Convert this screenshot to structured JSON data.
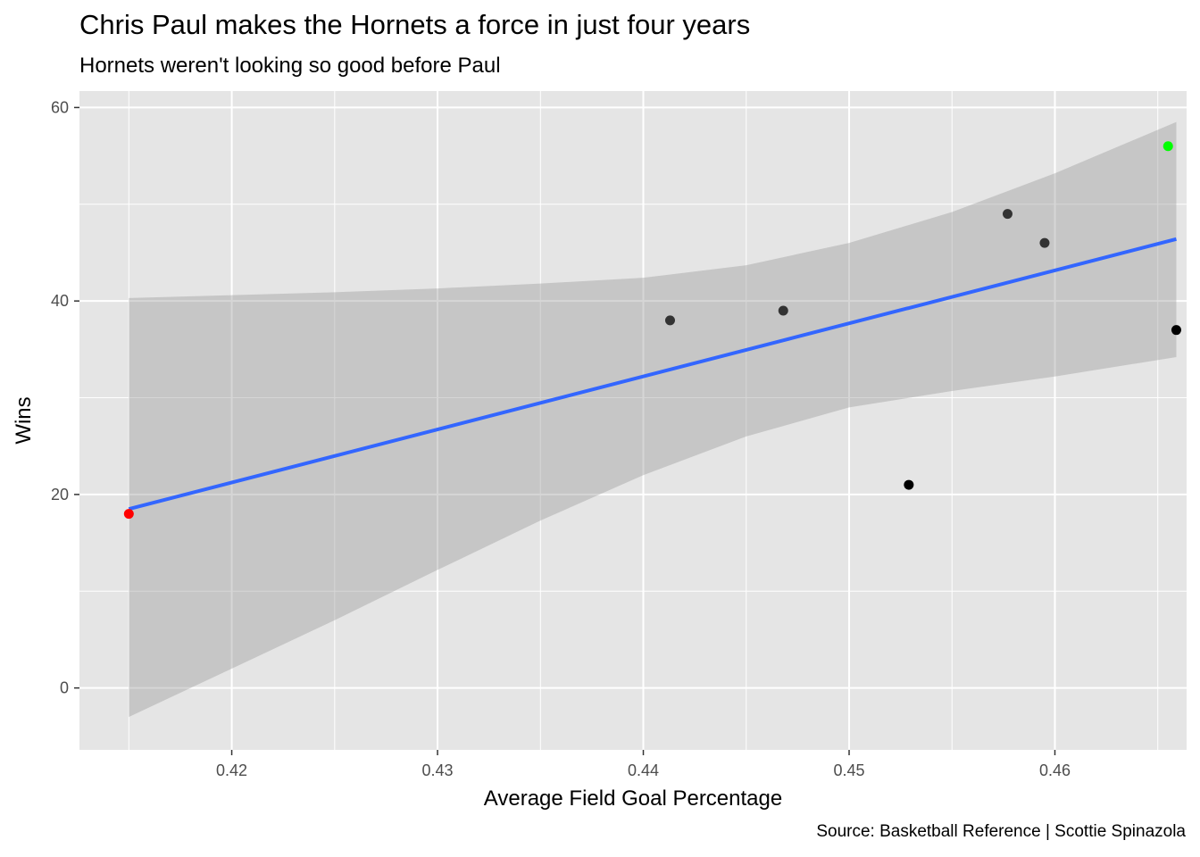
{
  "chart_data": {
    "type": "scatter",
    "title": "Chris Paul makes the Hornets a force in just four years",
    "subtitle": "Hornets weren't looking so good before Paul",
    "caption": "Source: Basketball Reference | Scottie Spinazola",
    "xlabel": "Average Field Goal Percentage",
    "ylabel": "Wins",
    "xlim": [
      0.4126,
      0.4664
    ],
    "ylim": [
      -6.4,
      61.7
    ],
    "x_ticks": [
      0.42,
      0.43,
      0.44,
      0.45,
      0.46
    ],
    "x_tick_labels": [
      "0.42",
      "0.43",
      "0.44",
      "0.45",
      "0.46"
    ],
    "y_ticks": [
      0,
      20,
      40,
      60
    ],
    "y_tick_labels": [
      "0",
      "20",
      "40",
      "60"
    ],
    "grid": true,
    "background": "#e5e5e5",
    "points": [
      {
        "x": 0.415,
        "y": 18,
        "color": "#ff0000"
      },
      {
        "x": 0.4413,
        "y": 38,
        "color": "#333333"
      },
      {
        "x": 0.4468,
        "y": 39,
        "color": "#333333"
      },
      {
        "x": 0.4529,
        "y": 21,
        "color": "#000000"
      },
      {
        "x": 0.4577,
        "y": 49,
        "color": "#333333"
      },
      {
        "x": 0.4595,
        "y": 46,
        "color": "#333333"
      },
      {
        "x": 0.4655,
        "y": 56,
        "color": "#00ff00"
      },
      {
        "x": 0.4659,
        "y": 37,
        "color": "#000000"
      }
    ],
    "trend_line": {
      "method": "linear",
      "color": "#3366ff",
      "x": [
        0.415,
        0.4659
      ],
      "y": [
        18.5,
        46.4
      ]
    },
    "confidence_band": {
      "color": "#999999",
      "x": [
        0.415,
        0.42,
        0.425,
        0.43,
        0.435,
        0.44,
        0.445,
        0.45,
        0.455,
        0.46,
        0.4659
      ],
      "lower": [
        -3.0,
        2.0,
        7.0,
        12.2,
        17.3,
        22.0,
        26.0,
        29.0,
        30.7,
        32.2,
        34.2
      ],
      "upper": [
        40.3,
        40.6,
        40.9,
        41.3,
        41.8,
        42.4,
        43.7,
        46.0,
        49.2,
        53.2,
        58.5
      ]
    }
  }
}
